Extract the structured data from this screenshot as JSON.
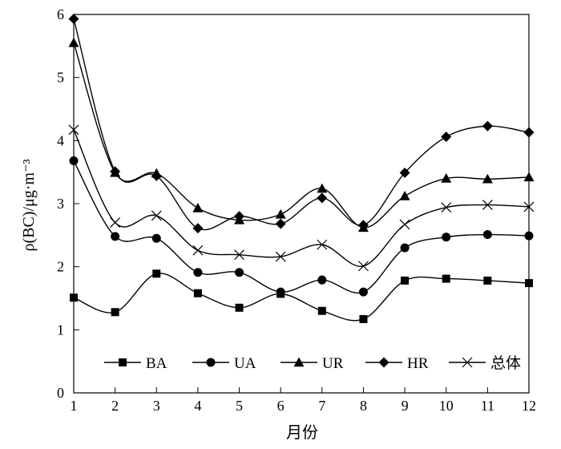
{
  "chart_data": {
    "type": "line",
    "xlabel": "月份",
    "ylabel": "ρ(BC)/μg·m⁻³",
    "xlim": [
      1,
      12
    ],
    "ylim": [
      0,
      6
    ],
    "x_ticks": [
      "1",
      "2",
      "3",
      "4",
      "5",
      "6",
      "7",
      "8",
      "9",
      "10",
      "11",
      "12"
    ],
    "y_ticks": [
      "0",
      "1",
      "2",
      "3",
      "4",
      "5",
      "6"
    ],
    "grid": false,
    "legend_position": "bottom-center",
    "x": [
      1,
      2,
      3,
      4,
      5,
      6,
      7,
      8,
      9,
      10,
      11,
      12
    ],
    "series": [
      {
        "name": "BA",
        "marker": "square",
        "values": [
          1.51,
          1.28,
          1.89,
          1.58,
          1.35,
          1.57,
          1.3,
          1.17,
          1.78,
          1.81,
          1.78,
          1.74
        ]
      },
      {
        "name": "UA",
        "marker": "circle",
        "values": [
          3.68,
          2.48,
          2.45,
          1.91,
          1.91,
          1.6,
          1.79,
          1.6,
          2.3,
          2.47,
          2.51,
          2.49
        ]
      },
      {
        "name": "UR",
        "marker": "triangle",
        "values": [
          5.55,
          3.49,
          3.48,
          2.93,
          2.74,
          2.83,
          3.24,
          2.62,
          3.12,
          3.4,
          3.39,
          3.42
        ]
      },
      {
        "name": "HR",
        "marker": "diamond",
        "values": [
          5.93,
          3.51,
          3.44,
          2.61,
          2.8,
          2.68,
          3.09,
          2.66,
          3.49,
          4.06,
          4.23,
          4.13
        ]
      },
      {
        "name": "总体",
        "marker": "x",
        "values": [
          4.17,
          2.7,
          2.81,
          2.26,
          2.19,
          2.16,
          2.35,
          2.01,
          2.67,
          2.94,
          2.98,
          2.95
        ]
      }
    ]
  },
  "colors": {
    "line": "#000000",
    "background": "#ffffff"
  }
}
